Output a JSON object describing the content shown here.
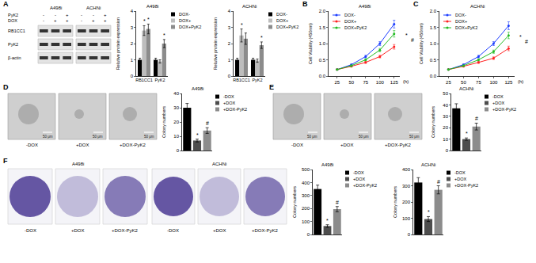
{
  "panel_labels": [
    "A",
    "B",
    "C",
    "D",
    "E",
    "F"
  ],
  "blot": {
    "cell_lines": [
      "A498i",
      "ACHNi"
    ],
    "treatments": [
      {
        "label": "PyK2",
        "signs": [
          "-",
          "-",
          "+"
        ]
      },
      {
        "label": "DOX",
        "signs": [
          "-",
          "+",
          "+"
        ]
      }
    ],
    "proteins": [
      "RB1CC1",
      "PyK2",
      "β-actin"
    ]
  },
  "images": [
    {
      "labels": [
        "-DOX",
        "+DOX",
        "+DOX-PyK2"
      ],
      "scale_bar": "50 μm"
    },
    {
      "labels": [
        "-DOX",
        "+DOX",
        "+DOX-PyK2"
      ],
      "scale_bar": "50 μm"
    },
    {
      "groups": [
        {
          "title": "A498i",
          "labels": [
            "-DOX",
            "+DOX",
            "+DOX-PyK2"
          ]
        },
        {
          "title": "ACHNi",
          "labels": [
            "-DOX",
            "+DOX",
            "+DOX-PyK2"
          ]
        }
      ]
    }
  ],
  "chart_data": [
    {
      "type": "bar",
      "title": "A498i",
      "y_label": "Relative protein expression",
      "categories": [
        "RB1CC1",
        "PyK2"
      ],
      "series": [
        {
          "name": "DOX-",
          "color": "#000000",
          "values": [
            1.0,
            1.0
          ],
          "errors": [
            0.1,
            0.1
          ]
        },
        {
          "name": "DOX+",
          "color": "#bdbdbd",
          "values": [
            2.8,
            0.9
          ],
          "errors": [
            0.3,
            0.1
          ]
        },
        {
          "name": "DOX+PyK2",
          "color": "#8c8c8c",
          "values": [
            2.9,
            2.0
          ],
          "errors": [
            0.3,
            0.25
          ]
        }
      ],
      "ylim": [
        0,
        4
      ],
      "yticks": [
        0,
        1,
        2,
        3,
        4
      ],
      "legend": "right",
      "annotations": [
        {
          "text": "*",
          "category": "RB1CC1",
          "series": "DOX+"
        },
        {
          "text": "*",
          "category": "RB1CC1",
          "series": "DOX+PyK2"
        },
        {
          "text": "*",
          "category": "PyK2",
          "series": "DOX+PyK2"
        }
      ]
    },
    {
      "type": "bar",
      "title": "ACHNi",
      "y_label": "Relative protein expression",
      "categories": [
        "RB1CC1",
        "PyK2"
      ],
      "series": [
        {
          "name": "DOX-",
          "color": "#000000",
          "values": [
            1.0,
            1.0
          ],
          "errors": [
            0.1,
            0.1
          ]
        },
        {
          "name": "DOX+",
          "color": "#bdbdbd",
          "values": [
            2.5,
            0.95
          ],
          "errors": [
            0.4,
            0.1
          ]
        },
        {
          "name": "DOX+PyK2",
          "color": "#8c8c8c",
          "values": [
            2.3,
            1.9
          ],
          "errors": [
            0.35,
            0.2
          ]
        }
      ],
      "ylim": [
        0,
        4
      ],
      "yticks": [
        0,
        1,
        2,
        3,
        4
      ],
      "legend": "right",
      "annotations": [
        {
          "text": "*",
          "category": "RB1CC1",
          "series": "DOX+"
        },
        {
          "text": "*",
          "category": "PyK2",
          "series": "DOX+PyK2"
        }
      ]
    },
    {
      "type": "line",
      "title": "A498i",
      "x_label": "(h)",
      "y_label": "Cell Viability (450nm)",
      "x": [
        25,
        50,
        75,
        100,
        125
      ],
      "series": [
        {
          "name": "DOX-",
          "color": "#1a3cff",
          "values": [
            0.2,
            0.35,
            0.6,
            1.0,
            1.6
          ],
          "errors": [
            0.01,
            0.02,
            0.04,
            0.06,
            0.12
          ]
        },
        {
          "name": "DOX+",
          "color": "#ff2020",
          "values": [
            0.2,
            0.3,
            0.42,
            0.6,
            0.9
          ],
          "errors": [
            0.01,
            0.02,
            0.03,
            0.04,
            0.07
          ]
        },
        {
          "name": "DOX+PyK2",
          "color": "#22bb22",
          "values": [
            0.2,
            0.32,
            0.5,
            0.8,
            1.3
          ],
          "errors": [
            0.01,
            0.02,
            0.03,
            0.05,
            0.1
          ]
        }
      ],
      "xlim": [
        10,
        135
      ],
      "xticks": [
        25,
        50,
        75,
        100,
        125
      ],
      "ylim": [
        0,
        2
      ],
      "yticks": [
        {
          "value": 0,
          "label": "0.0"
        },
        0.5,
        {
          "value": 1,
          "label": "1.0"
        },
        1.5,
        {
          "value": 2,
          "label": "2.0"
        }
      ],
      "marker": "circle",
      "legend": "upper left",
      "annotations": [
        {
          "text": "*",
          "between": [
            "DOX-",
            "DOX+"
          ]
        },
        {
          "text": "#",
          "between": [
            "DOX+",
            "DOX+PyK2"
          ]
        }
      ]
    },
    {
      "type": "line",
      "title": "ACHNi",
      "x_label": "(h)",
      "y_label": "Cell Viability (450nm)",
      "x": [
        25,
        50,
        75,
        100,
        125
      ],
      "series": [
        {
          "name": "DOX-",
          "color": "#1a3cff",
          "values": [
            0.2,
            0.35,
            0.6,
            1.0,
            1.55
          ],
          "errors": [
            0.01,
            0.02,
            0.04,
            0.06,
            0.12
          ]
        },
        {
          "name": "DOX+",
          "color": "#ff2020",
          "values": [
            0.2,
            0.3,
            0.42,
            0.55,
            0.85
          ],
          "errors": [
            0.01,
            0.02,
            0.03,
            0.04,
            0.07
          ]
        },
        {
          "name": "DOX+PyK2",
          "color": "#22bb22",
          "values": [
            0.2,
            0.32,
            0.5,
            0.75,
            1.25
          ],
          "errors": [
            0.01,
            0.02,
            0.03,
            0.05,
            0.1
          ]
        }
      ],
      "xlim": [
        10,
        135
      ],
      "xticks": [
        25,
        50,
        75,
        100,
        125
      ],
      "ylim": [
        0,
        2
      ],
      "yticks": [
        {
          "value": 0,
          "label": "0.0"
        },
        0.5,
        {
          "value": 1,
          "label": "1.0"
        },
        1.5,
        {
          "value": 2,
          "label": "2.0"
        }
      ],
      "marker": "circle",
      "legend": "upper left",
      "annotations": [
        {
          "text": "*",
          "between": [
            "DOX-",
            "DOX+"
          ]
        },
        {
          "text": "#",
          "between": [
            "DOX+",
            "DOX+PyK2"
          ]
        }
      ]
    },
    {
      "type": "bar",
      "title": "A498i",
      "y_label": "Colony numbers",
      "categories": [
        "-DOX",
        "+DOX",
        "+DOX-PyK2"
      ],
      "values": [
        30,
        7,
        14
      ],
      "errors": [
        3,
        1,
        2
      ],
      "colors": [
        "#000000",
        "#4d4d4d",
        "#8c8c8c"
      ],
      "ylim": [
        0,
        40
      ],
      "yticks": [
        0,
        10,
        20,
        30,
        40
      ],
      "legend": "right",
      "tick_labels": "y",
      "annotations": [
        {
          "text": "*",
          "category": "+DOX"
        },
        {
          "text": "#",
          "category": "+DOX-PyK2"
        }
      ]
    },
    {
      "type": "bar",
      "title": "ACHNi",
      "y_label": "Colony numbers",
      "categories": [
        "-DOX",
        "+DOX",
        "+DOX-PyK2"
      ],
      "values": [
        37,
        10,
        21
      ],
      "errors": [
        4,
        1,
        3
      ],
      "colors": [
        "#000000",
        "#4d4d4d",
        "#8c8c8c"
      ],
      "ylim": [
        0,
        50
      ],
      "yticks": [
        0,
        10,
        20,
        30,
        40,
        50
      ],
      "legend": "right",
      "tick_labels": "y",
      "annotations": [
        {
          "text": "*",
          "category": "+DOX"
        },
        {
          "text": "#",
          "category": "+DOX-PyK2"
        }
      ]
    },
    {
      "type": "bar",
      "title": "A498i",
      "y_label": "Colony numbers",
      "categories": [
        "-DOX",
        "+DOX",
        "+DOX-PyK2"
      ],
      "values": [
        350,
        65,
        195
      ],
      "errors": [
        30,
        10,
        20
      ],
      "colors": [
        "#000000",
        "#4d4d4d",
        "#8c8c8c"
      ],
      "ylim": [
        0,
        500
      ],
      "yticks": [
        0,
        100,
        200,
        300,
        400,
        500
      ],
      "legend": "right",
      "tick_labels": "y",
      "annotations": [
        {
          "text": "*",
          "category": "+DOX"
        },
        {
          "text": "#",
          "category": "+DOX-PyK2"
        }
      ]
    },
    {
      "type": "bar",
      "title": "ACHNi",
      "y_label": "Colony numbers",
      "categories": [
        "-DOX",
        "+DOX",
        "+DOX-PyK2"
      ],
      "values": [
        320,
        95,
        275
      ],
      "errors": [
        30,
        15,
        25
      ],
      "colors": [
        "#000000",
        "#4d4d4d",
        "#8c8c8c"
      ],
      "ylim": [
        0,
        400
      ],
      "yticks": [
        0,
        100,
        200,
        300,
        400
      ],
      "legend": "right",
      "tick_labels": "y",
      "annotations": [
        {
          "text": "*",
          "category": "+DOX"
        },
        {
          "text": "#",
          "category": "+DOX-PyK2"
        }
      ]
    }
  ]
}
